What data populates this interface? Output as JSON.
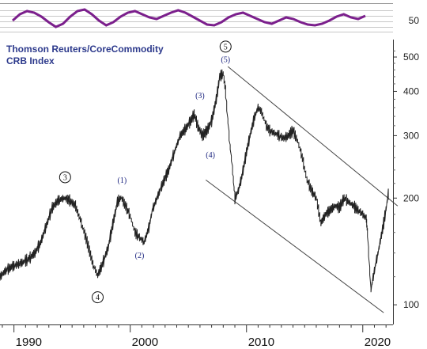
{
  "chart_data": {
    "type": "line",
    "title": "Thomson Reuters/CoreCommodity",
    "subtitle": "CRB Index",
    "y_scale": "log",
    "ylim": [
      88,
      560
    ],
    "xlim": [
      1988.8,
      2022.6
    ],
    "y_ticks": [
      100,
      200,
      300,
      400,
      500
    ],
    "x_ticks": [
      1990,
      2000,
      2010,
      2020
    ],
    "price_series": {
      "x": [
        1988.8,
        1989.3,
        1989.8,
        1990.3,
        1990.8,
        1991.3,
        1991.8,
        1992.3,
        1992.8,
        1993.3,
        1993.8,
        1994.3,
        1994.8,
        1995.3,
        1995.8,
        1996.3,
        1996.8,
        1997.2,
        1997.6,
        1998.1,
        1998.6,
        1998.9,
        1999.2,
        1999.6,
        2000.0,
        2000.4,
        2000.8,
        2001.2,
        2001.6,
        2001.9,
        2002.3,
        2002.8,
        2003.3,
        2003.8,
        2004.3,
        2004.8,
        2005.2,
        2005.5,
        2005.8,
        2006.2,
        2006.6,
        2007.0,
        2007.4,
        2007.7,
        2008.0,
        2008.2,
        2008.5,
        2008.8,
        2009.0,
        2009.3,
        2009.6,
        2010.0,
        2010.3,
        2010.7,
        2011.0,
        2011.3,
        2011.7,
        2012.0,
        2012.4,
        2012.8,
        2013.2,
        2013.6,
        2014.0,
        2014.4,
        2014.8,
        2015.2,
        2015.6,
        2016.0,
        2016.4,
        2016.8,
        2017.2,
        2017.6,
        2018.0,
        2018.4,
        2018.8,
        2019.2,
        2019.6,
        2020.0,
        2020.3,
        2020.4,
        2020.7,
        2021.0,
        2021.4,
        2021.8,
        2022.2
      ],
      "y": [
        120,
        125,
        128,
        130,
        132,
        135,
        140,
        150,
        168,
        188,
        197,
        200,
        197,
        190,
        170,
        150,
        130,
        121,
        130,
        145,
        175,
        195,
        201,
        190,
        178,
        160,
        155,
        150,
        165,
        185,
        200,
        220,
        240,
        270,
        300,
        315,
        330,
        345,
        320,
        300,
        310,
        330,
        380,
        440,
        450,
        400,
        300,
        240,
        200,
        210,
        230,
        270,
        300,
        340,
        360,
        350,
        320,
        310,
        305,
        300,
        295,
        300,
        310,
        290,
        260,
        225,
        210,
        200,
        170,
        180,
        185,
        190,
        188,
        200,
        195,
        190,
        185,
        180,
        175,
        160,
        110,
        125,
        145,
        170,
        205
      ]
    },
    "oscillator": {
      "reference_line": 50,
      "ticks": [
        50
      ],
      "series_color": "#7b1f8c",
      "values": [
        50,
        58,
        62,
        60,
        55,
        48,
        42,
        46,
        55,
        62,
        64,
        58,
        50,
        44,
        48,
        55,
        60,
        62,
        58,
        54,
        52,
        56,
        60,
        63,
        60,
        55,
        50,
        45,
        44,
        48,
        54,
        58,
        60,
        56,
        52,
        48,
        46,
        50,
        54,
        52,
        48,
        45,
        44,
        46,
        50,
        55,
        58,
        54,
        52,
        56
      ]
    },
    "channel": {
      "color": "#444444"
    },
    "annotations": [
      {
        "label": "3",
        "style": "circled",
        "x": 1994.4,
        "y": 229
      },
      {
        "label": "4",
        "style": "circled",
        "x": 1997.2,
        "y": 105
      },
      {
        "label": "(1)",
        "style": "parenthesized",
        "x": 1999.3,
        "y": 225
      },
      {
        "label": "(2)",
        "style": "parenthesized",
        "x": 2000.8,
        "y": 138
      },
      {
        "label": "(3)",
        "style": "parenthesized",
        "x": 2006.0,
        "y": 390
      },
      {
        "label": "(4)",
        "style": "parenthesized",
        "x": 2006.9,
        "y": 265
      },
      {
        "label": "5",
        "style": "circled",
        "x": 2008.2,
        "y": 535
      },
      {
        "label": "(5)",
        "style": "parenthesized",
        "x": 2008.2,
        "y": 493
      }
    ],
    "grid": false,
    "colors": {
      "price": "#222222",
      "text_title": "#2d3a8c",
      "wave_labels": "#1a237e",
      "axis": "#333333"
    }
  }
}
